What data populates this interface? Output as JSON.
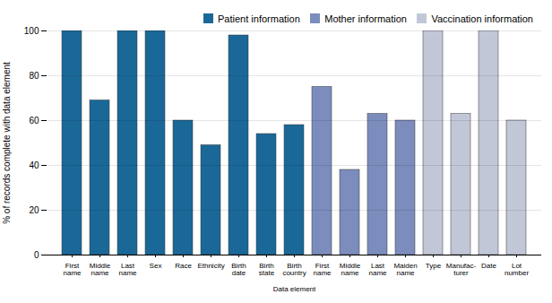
{
  "chart_data": {
    "type": "bar",
    "categories": [
      "First\nname",
      "Middle\nname",
      "Last\nname",
      "Sex",
      "Race",
      "Ethnicity",
      "Birth\ndate",
      "Birth\nstate",
      "Birth\ncountry",
      "First\nname",
      "Middle\nname",
      "Last\nname",
      "Maiden\nname",
      "Type",
      "Manufac-\nturer",
      "Date",
      "Lot\nnumber"
    ],
    "series": [
      {
        "name": "Patient information",
        "color": "#1a6898",
        "values": [
          100,
          69,
          100,
          100,
          60,
          49,
          98,
          54,
          58,
          null,
          null,
          null,
          null,
          null,
          null,
          null,
          null
        ]
      },
      {
        "name": "Mother information",
        "color": "#7b8cbd",
        "values": [
          null,
          null,
          null,
          null,
          null,
          null,
          null,
          null,
          null,
          75,
          38,
          63,
          60,
          null,
          null,
          null,
          null
        ]
      },
      {
        "name": "Vaccination information",
        "color": "#c2c7d8",
        "values": [
          null,
          null,
          null,
          null,
          null,
          null,
          null,
          null,
          null,
          null,
          null,
          null,
          null,
          100,
          63,
          100,
          60
        ]
      }
    ],
    "xlabel": "Data element",
    "ylabel": "% of records complete with data element",
    "ylim": [
      0,
      100
    ],
    "yticks": [
      0,
      20,
      40,
      60,
      80,
      100
    ],
    "grid": true,
    "legend": "upper right"
  }
}
